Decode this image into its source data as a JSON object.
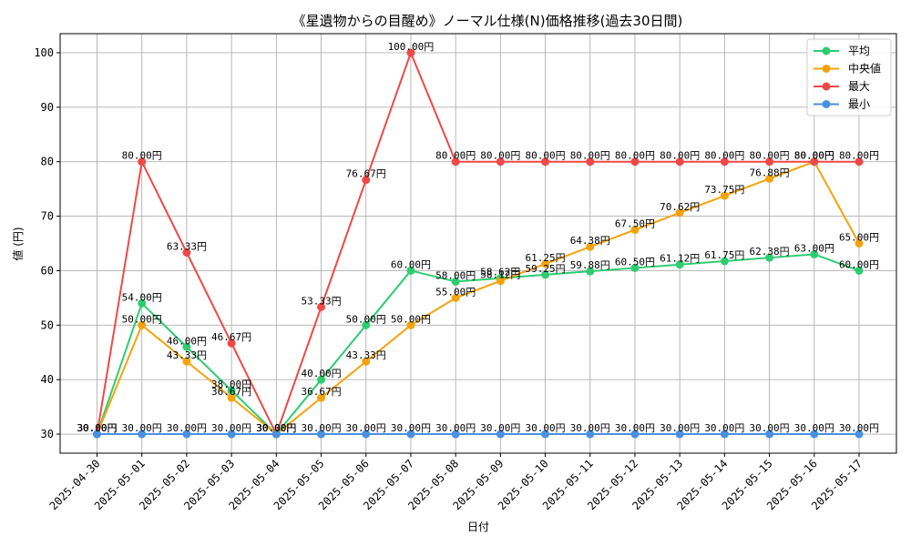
{
  "chart_data": {
    "type": "line",
    "title": "《星遺物からの目醒め》ノーマル仕様(N)価格推移(過去30日間)",
    "xlabel": "日付",
    "ylabel": "値 (円)",
    "ylim": [
      26.5,
      103.5
    ],
    "yticks": [
      30,
      40,
      50,
      60,
      70,
      80,
      90,
      100
    ],
    "grid": true,
    "legend_position": "top-right",
    "value_suffix": "円",
    "categories": [
      "2025-04-30",
      "2025-05-01",
      "2025-05-02",
      "2025-05-03",
      "2025-05-04",
      "2025-05-05",
      "2025-05-06",
      "2025-05-07",
      "2025-05-08",
      "2025-05-09",
      "2025-05-10",
      "2025-05-11",
      "2025-05-12",
      "2025-05-13",
      "2025-05-14",
      "2025-05-15",
      "2025-05-16",
      "2025-05-17"
    ],
    "series": [
      {
        "name": "平均",
        "color": "#2ecc71",
        "values": [
          30.0,
          54.0,
          46.0,
          38.0,
          30.0,
          40.0,
          50.0,
          60.0,
          58.0,
          58.62,
          59.25,
          59.88,
          60.5,
          61.12,
          61.75,
          62.38,
          63.0,
          60.0
        ]
      },
      {
        "name": "中央値",
        "color": "#f5a30a",
        "values": [
          30.0,
          50.0,
          43.33,
          36.67,
          30.0,
          36.67,
          43.33,
          50.0,
          55.0,
          58.12,
          61.25,
          64.38,
          67.5,
          70.62,
          73.75,
          76.88,
          80.0,
          65.0
        ]
      },
      {
        "name": "最大",
        "color": "#f04848",
        "values": [
          30.0,
          80.0,
          63.33,
          46.67,
          30.0,
          53.33,
          76.67,
          100.0,
          80.0,
          80.0,
          80.0,
          80.0,
          80.0,
          80.0,
          80.0,
          80.0,
          80.0,
          80.0
        ]
      },
      {
        "name": "最小",
        "color": "#4a90e2",
        "values": [
          30.0,
          30.0,
          30.0,
          30.0,
          30.0,
          30.0,
          30.0,
          30.0,
          30.0,
          30.0,
          30.0,
          30.0,
          30.0,
          30.0,
          30.0,
          30.0,
          30.0,
          30.0
        ]
      }
    ]
  }
}
